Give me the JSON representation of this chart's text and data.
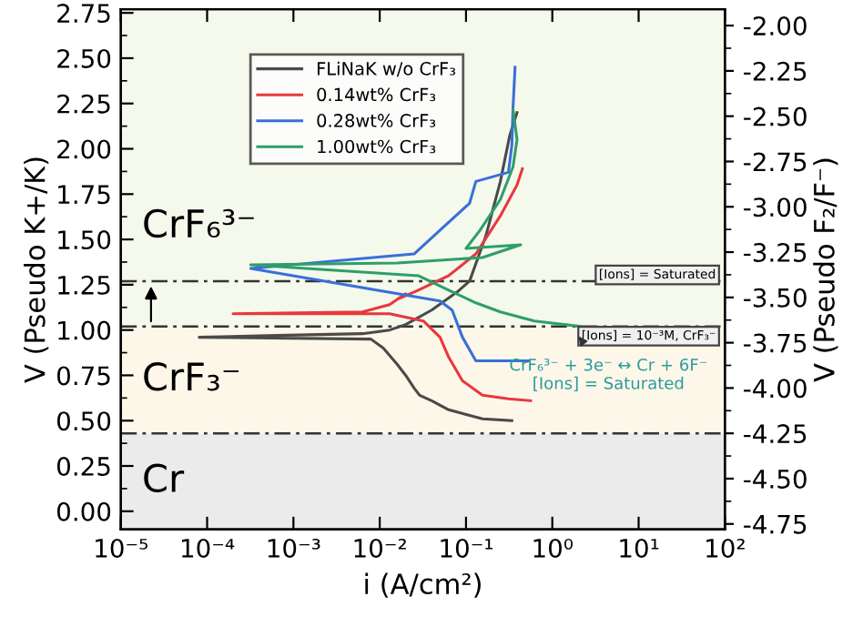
{
  "chart_data": {
    "type": "line",
    "xlabel": "i (A/cm²)",
    "ylabel": "V (Pseudo K+/K)",
    "y2label": "V (Pseudo F₂/F⁻)",
    "log": "x",
    "xlim": [
      1e-05,
      100
    ],
    "xticks": [
      {
        "value": 1e-05,
        "label": "10⁻⁵"
      },
      {
        "value": 0.0001,
        "label": "10⁻⁴"
      },
      {
        "value": 0.001,
        "label": "10⁻³"
      },
      {
        "value": 0.01,
        "label": "10⁻²"
      },
      {
        "value": 0.1,
        "label": "10⁻¹"
      },
      {
        "value": 1,
        "label": "10⁰"
      },
      {
        "value": 10,
        "label": "10¹"
      },
      {
        "value": 100,
        "label": "10²"
      }
    ],
    "ylim": [
      -0.1,
      2.77
    ],
    "yticks": [
      {
        "value": 0,
        "label": "0.00"
      },
      {
        "value": 0.25,
        "label": "0.25"
      },
      {
        "value": 0.5,
        "label": "0.50"
      },
      {
        "value": 0.75,
        "label": "0.75"
      },
      {
        "value": 1,
        "label": "1.00"
      },
      {
        "value": 1.25,
        "label": "1.25"
      },
      {
        "value": 1.5,
        "label": "1.50"
      },
      {
        "value": 1.75,
        "label": "1.75"
      },
      {
        "value": 2,
        "label": "2.00"
      },
      {
        "value": 2.25,
        "label": "2.25"
      },
      {
        "value": 2.5,
        "label": "2.50"
      },
      {
        "value": 2.75,
        "label": "2.75"
      }
    ],
    "y2lim": [
      -4.78,
      -1.91
    ],
    "y2ticks": [
      {
        "value": -4.75,
        "label": "-4.75"
      },
      {
        "value": -4.5,
        "label": "-4.50"
      },
      {
        "value": -4.25,
        "label": "-4.25"
      },
      {
        "value": -4,
        "label": "-4.00"
      },
      {
        "value": -3.75,
        "label": "-3.75"
      },
      {
        "value": -3.5,
        "label": "-3.50"
      },
      {
        "value": -3.25,
        "label": "-3.25"
      },
      {
        "value": -3,
        "label": "-3.00"
      },
      {
        "value": -2.75,
        "label": "-2.75"
      },
      {
        "value": -2.5,
        "label": "-2.50"
      },
      {
        "value": -2.25,
        "label": "-2.25"
      },
      {
        "value": -2,
        "label": "-2.00"
      }
    ],
    "grid": false,
    "legend": "top left",
    "marker": "none",
    "line_style": "solid",
    "series": [
      {
        "name": "FLiNaK w/o CrF₃",
        "color": "#4a4a4a",
        "x": [
          0.34,
          0.155,
          0.063,
          0.04,
          0.029,
          0.025,
          0.02,
          0.016,
          0.011,
          0.0079,
          8.1e-05,
          0.00065,
          0.0063,
          0.013,
          0.02,
          0.04,
          0.079,
          0.11,
          0.17,
          0.25,
          0.32,
          0.39
        ],
        "values": [
          0.5,
          0.51,
          0.56,
          0.61,
          0.64,
          0.68,
          0.75,
          0.81,
          0.9,
          0.95,
          0.96,
          0.97,
          0.98,
          1.0,
          1.03,
          1.11,
          1.21,
          1.27,
          1.52,
          1.82,
          2.07,
          2.2
        ]
      },
      {
        "name": "0.14wt% CrF₃",
        "color": "#e8383d",
        "x": [
          0.56,
          0.31,
          0.155,
          0.091,
          0.063,
          0.05,
          0.032,
          0.013,
          0.0002,
          0.0063,
          0.013,
          0.02,
          0.016,
          0.028,
          0.063,
          0.13,
          0.25,
          0.39,
          0.45
        ],
        "values": [
          0.61,
          0.62,
          0.64,
          0.72,
          0.85,
          0.96,
          1.05,
          1.09,
          1.09,
          1.1,
          1.14,
          1.2,
          1.17,
          1.22,
          1.3,
          1.42,
          1.63,
          1.8,
          1.89
        ]
      },
      {
        "name": "0.28wt% CrF₃",
        "color": "#3a6fd8",
        "x": [
          0.54,
          0.13,
          0.091,
          0.069,
          0.05,
          0.00032,
          0.025,
          0.11,
          0.13,
          0.31,
          0.34,
          0.35,
          0.37
        ],
        "values": [
          0.83,
          0.83,
          0.96,
          1.11,
          1.16,
          1.34,
          1.42,
          1.7,
          1.82,
          1.87,
          2.02,
          2.22,
          2.45
        ]
      },
      {
        "name": "1.00wt% CrF₃",
        "color": "#2e9e6a",
        "x": [
          2.1,
          0.62,
          0.25,
          0.13,
          0.063,
          0.028,
          0.00032,
          0.016,
          0.155,
          0.43,
          0.1,
          0.145,
          0.25,
          0.35,
          0.39,
          0.35
        ],
        "values": [
          1.02,
          1.05,
          1.1,
          1.15,
          1.22,
          1.3,
          1.36,
          1.37,
          1.4,
          1.47,
          1.45,
          1.55,
          1.72,
          1.9,
          2.05,
          2.22
        ]
      }
    ],
    "bands": [
      {
        "axis": "y",
        "from": -0.1,
        "to": 0.43,
        "label": "Cr",
        "color": "#ebebeb"
      },
      {
        "axis": "y",
        "from": 0.43,
        "to": 1.02,
        "label": "CrF₃⁻",
        "color": "#fdf7ea"
      },
      {
        "axis": "y",
        "from": 1.02,
        "to": 2.77,
        "label": "CrF₆³⁻",
        "color": "#f4f9ec"
      }
    ],
    "ref_lines": [
      {
        "axis": "y",
        "value": 0.43,
        "color": "#333333",
        "line_style": "dashed"
      },
      {
        "axis": "y",
        "value": 1.02,
        "color": "#333333",
        "line_style": "dashed"
      },
      {
        "axis": "y",
        "value": 1.27,
        "label": "[Ions] = Saturated",
        "color": "#333333",
        "line_style": "dashed"
      }
    ],
    "annotations": [
      "[Ions] = 10⁻³M, CrF₃⁻",
      {
        "text": "CrF₆³⁻ + 3e⁻ ↔ Cr + 6F⁻\n[Ions] = Saturated",
        "x": 1.7,
        "y": 1.01
      }
    ]
  }
}
